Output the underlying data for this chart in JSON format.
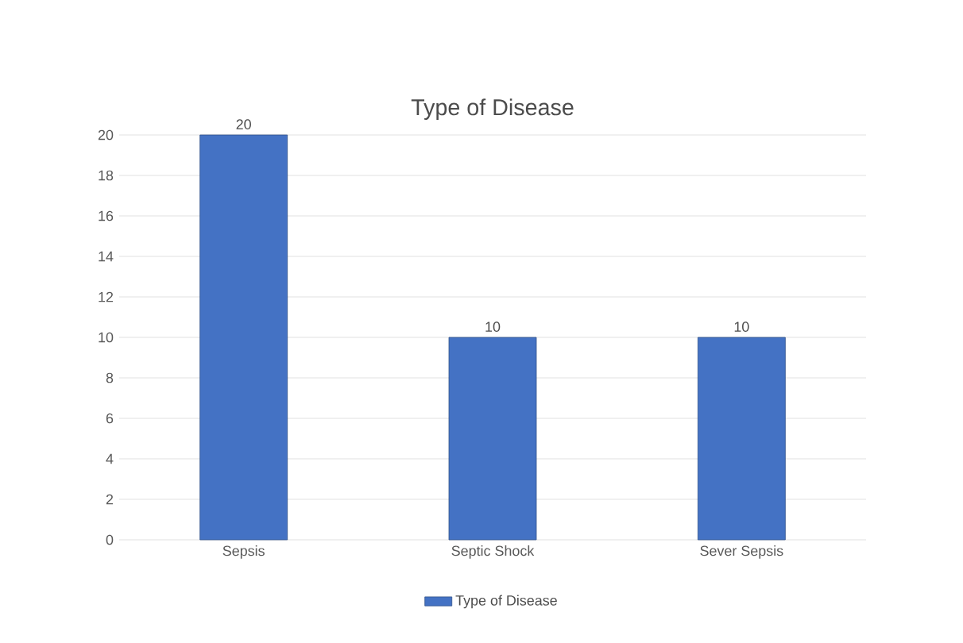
{
  "chart_data": {
    "type": "bar",
    "title": "Type of Disease",
    "categories": [
      "Sepsis",
      "Septic Shock",
      "Sever Sepsis"
    ],
    "series": [
      {
        "name": "Type of Disease",
        "color": "#4472c4",
        "values": [
          20,
          10,
          10
        ]
      }
    ],
    "ylim": [
      0,
      20
    ],
    "yticks": [
      0,
      2,
      4,
      6,
      8,
      10,
      12,
      14,
      16,
      18,
      20
    ],
    "grid": "y",
    "legend": "bottom",
    "data_labels": true
  }
}
